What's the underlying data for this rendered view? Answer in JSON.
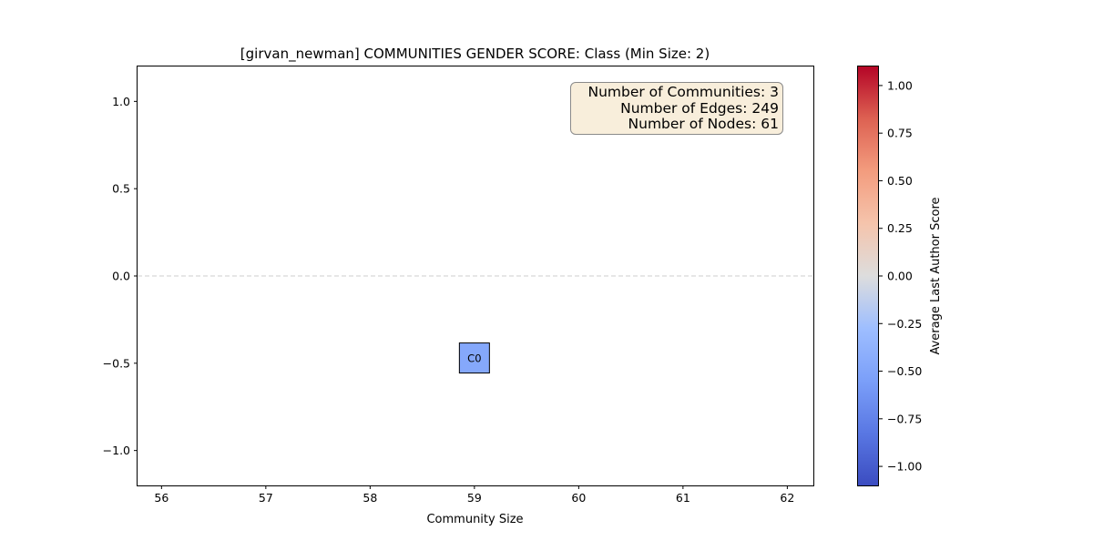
{
  "chart_data": {
    "type": "scatter",
    "title": "[girvan_newman] COMMUNITIES GENDER SCORE: Class (Min Size: 2)",
    "xlabel": "Community Size",
    "ylabel": "",
    "xlim": [
      55.77,
      62.25
    ],
    "ylim": [
      -1.2,
      1.2
    ],
    "x_ticks": [
      "56",
      "57",
      "58",
      "59",
      "60",
      "61",
      "62"
    ],
    "y_ticks": [
      "−1.0",
      "−0.5",
      "0.0",
      "0.5",
      "1.0"
    ],
    "reference_line": {
      "y": 0.0,
      "style": "dashed",
      "color": "#cccccc"
    },
    "points": [
      {
        "label": "C0",
        "x": 59,
        "y": -0.47,
        "color_value": -0.47,
        "marker": "square"
      }
    ],
    "info_box": {
      "lines": [
        "Number of Communities: 3",
        "Number of Edges: 249",
        "Number of Nodes: 61"
      ],
      "placement": "top-right",
      "background": "#f8eedb"
    },
    "colorbar": {
      "label": "Average Last Author Score",
      "colormap": "coolwarm",
      "range": [
        -1.1,
        1.1
      ],
      "ticks": [
        "−1.00",
        "−0.75",
        "−0.50",
        "−0.25",
        "0.00",
        "0.25",
        "0.50",
        "0.75",
        "1.00"
      ],
      "tick_values": [
        -1.0,
        -0.75,
        -0.5,
        -0.25,
        0.0,
        0.25,
        0.5,
        0.75,
        1.0
      ]
    },
    "grid": false
  }
}
